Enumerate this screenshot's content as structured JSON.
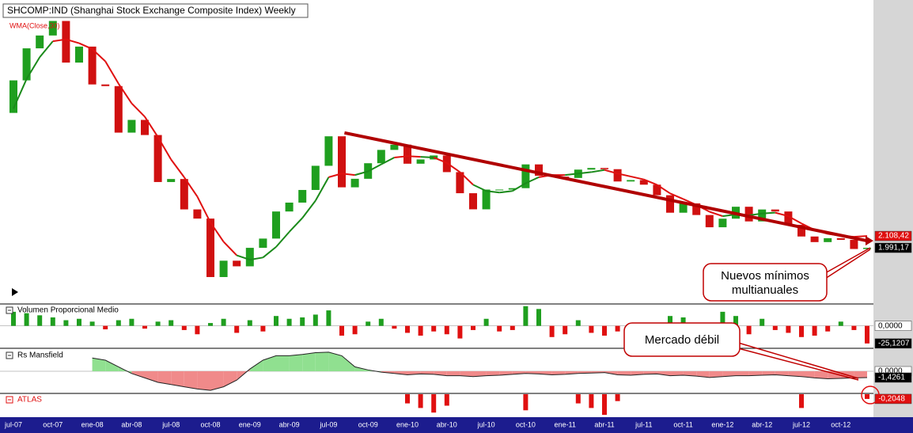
{
  "chart_data": [
    {
      "type": "candlestick",
      "title": "SHCOMP:IND (Shanghai Stock Exchange Composite Index) Weekly",
      "categories": [
        "jul-07",
        null,
        null,
        "oct-07",
        null,
        null,
        "ene-08",
        null,
        null,
        "abr-08",
        null,
        null,
        "jul-08",
        null,
        null,
        "oct-08",
        null,
        null,
        "ene-09",
        null,
        null,
        "abr-09",
        null,
        null,
        "jul-09",
        null,
        null,
        "oct-09",
        null,
        null,
        "ene-10",
        null,
        null,
        "abr-10",
        null,
        null,
        "jul-10",
        null,
        null,
        "oct-10",
        null,
        null,
        "ene-11",
        null,
        null,
        "abr-11",
        null,
        null,
        "jul-11",
        null,
        null,
        "oct-11",
        null,
        null,
        "ene-12",
        null,
        null,
        "abr-12",
        null,
        null,
        "jul-12",
        null,
        null,
        "oct-12",
        null,
        null
      ],
      "open": [
        3820,
        4470,
        5218,
        5552,
        5955,
        4871,
        5262,
        4383,
        4348,
        3473,
        3693,
        3433,
        2736,
        2776,
        2397,
        2293,
        1729,
        1871,
        1821,
        1991,
        2082,
        2373,
        2477,
        2633,
        2959,
        3412,
        2667,
        2779,
        2996,
        3195,
        3277,
        2989,
        3051,
        3110,
        2870,
        2592,
        2398,
        2638,
        2638,
        2656,
        2979,
        2820,
        2808,
        2790,
        2905,
        2928,
        2911,
        2743,
        2762,
        2701,
        2567,
        2359,
        2468,
        2333,
        2199,
        2292,
        2428,
        2262,
        2396,
        2373,
        2225,
        2103,
        2047,
        2086,
        2069,
        1980
      ],
      "close": [
        4470,
        5218,
        5552,
        5955,
        4871,
        5262,
        4383,
        4348,
        3473,
        3693,
        3433,
        2736,
        2776,
        2397,
        2293,
        1729,
        1871,
        1821,
        1991,
        2082,
        2373,
        2477,
        2633,
        2959,
        3412,
        2667,
        2779,
        2996,
        3195,
        3277,
        2989,
        3051,
        3110,
        2870,
        2592,
        2398,
        2638,
        2638,
        2656,
        2979,
        2820,
        2808,
        2790,
        2905,
        2928,
        2911,
        2743,
        2762,
        2701,
        2567,
        2359,
        2468,
        2333,
        2199,
        2292,
        2428,
        2262,
        2396,
        2373,
        2225,
        2103,
        2047,
        2086,
        2069,
        1980,
        1991.17
      ],
      "close_labels": [
        null,
        null,
        null,
        null,
        null,
        null,
        null,
        null,
        null,
        null,
        null,
        null,
        null,
        null,
        null,
        null,
        null,
        null,
        null,
        null,
        null,
        null,
        null,
        null,
        null,
        null,
        null,
        null,
        null,
        null,
        null,
        null,
        null,
        null,
        null,
        null,
        null,
        null,
        null,
        null,
        null,
        null,
        null,
        null,
        null,
        null,
        null,
        null,
        null,
        null,
        null,
        null,
        null,
        null,
        null,
        null,
        null,
        null,
        null,
        null,
        null,
        null,
        null,
        null,
        null,
        "1.991,17"
      ],
      "up_color": "#1f9f1f",
      "down_color": "#d01010",
      "series": [
        {
          "name": "WMA(Close,30)",
          "color": "#e01010",
          "up_color": "#1a8a1a",
          "values": [
            3900,
            4500,
            5000,
            5400,
            5450,
            5350,
            5200,
            4900,
            4400,
            4000,
            3750,
            3400,
            3050,
            2800,
            2550,
            2250,
            2050,
            1920,
            1880,
            1900,
            2000,
            2150,
            2300,
            2500,
            2800,
            2850,
            2830,
            2880,
            2980,
            3080,
            3100,
            3090,
            3080,
            3000,
            2870,
            2700,
            2620,
            2600,
            2620,
            2720,
            2800,
            2830,
            2830,
            2850,
            2870,
            2900,
            2850,
            2810,
            2770,
            2700,
            2590,
            2520,
            2450,
            2370,
            2320,
            2340,
            2330,
            2350,
            2360,
            2320,
            2240,
            2170,
            2130,
            2110,
            2100,
            2108.42
          ],
          "value_labels": [
            null,
            null,
            null,
            null,
            null,
            null,
            null,
            null,
            null,
            null,
            null,
            null,
            null,
            null,
            null,
            null,
            null,
            null,
            null,
            null,
            null,
            null,
            null,
            null,
            null,
            null,
            null,
            null,
            null,
            null,
            null,
            null,
            null,
            null,
            null,
            null,
            null,
            null,
            null,
            null,
            null,
            null,
            null,
            null,
            null,
            null,
            null,
            null,
            null,
            null,
            null,
            null,
            null,
            null,
            null,
            null,
            null,
            null,
            null,
            null,
            null,
            null,
            null,
            null,
            null,
            "2.108,42"
          ]
        }
      ],
      "trend_line": {
        "values": [
          3470,
          2060
        ],
        "color": "#b00000"
      },
      "ylim": [
        1524,
        6590
      ],
      "log_scale": true
    },
    {
      "type": "bar",
      "title": "Volumen Proporcional Medio",
      "up_color": "#1f9f1f",
      "down_color": "#e01010",
      "values": [
        20,
        18,
        15,
        12,
        8,
        10,
        6,
        -5,
        8,
        10,
        -4,
        6,
        8,
        -6,
        -12,
        4,
        10,
        -10,
        8,
        -8,
        14,
        10,
        12,
        16,
        22,
        -14,
        -12,
        6,
        10,
        -4,
        -10,
        -14,
        -8,
        -12,
        -18,
        -6,
        10,
        -8,
        -6,
        28,
        24,
        -16,
        -12,
        8,
        -10,
        -14,
        -8,
        -6,
        -6,
        -10,
        14,
        12,
        -8,
        -10,
        20,
        14,
        -12,
        10,
        -6,
        -10,
        -16,
        -14,
        -8,
        6,
        -6,
        -25.1207
      ],
      "value_labels": [
        null,
        null,
        null,
        null,
        null,
        null,
        null,
        null,
        null,
        null,
        null,
        null,
        null,
        null,
        null,
        null,
        null,
        null,
        null,
        null,
        null,
        null,
        null,
        null,
        null,
        null,
        null,
        null,
        null,
        null,
        null,
        null,
        null,
        null,
        null,
        null,
        null,
        null,
        null,
        null,
        null,
        null,
        null,
        null,
        null,
        null,
        null,
        null,
        null,
        null,
        null,
        null,
        null,
        null,
        null,
        null,
        null,
        null,
        null,
        null,
        null,
        null,
        null,
        null,
        null,
        "-25,1207"
      ],
      "ylim": [
        -32,
        30
      ],
      "yticks": [
        {
          "value": 0,
          "label": "0,0000"
        }
      ]
    },
    {
      "type": "area",
      "title": "Rs Mansfield",
      "up_color": "#90e090",
      "down_color": "#f08a8a",
      "values": [
        null,
        null,
        null,
        null,
        null,
        null,
        3,
        2.5,
        1,
        -0.5,
        -1.5,
        -2.5,
        -3,
        -3.5,
        -4,
        -4.3,
        -3.5,
        -2,
        0.5,
        2.5,
        3.5,
        3.5,
        3.8,
        4.2,
        4.3,
        3.5,
        1,
        0.3,
        -0.2,
        -0.5,
        -0.8,
        -0.6,
        -0.7,
        -1,
        -1,
        -1.2,
        -1,
        -0.9,
        -0.7,
        -0.5,
        -0.6,
        -0.8,
        -0.7,
        -0.5,
        -0.4,
        -0.3,
        -0.8,
        -0.9,
        -0.7,
        -0.6,
        -1,
        -0.9,
        -1.1,
        -1.4,
        -1.2,
        -1,
        -1,
        -0.9,
        -0.8,
        -1,
        -1.2,
        -1.5,
        -1.7,
        -1.6,
        -1.5,
        -1.4261
      ],
      "value_labels": [
        null,
        null,
        null,
        null,
        null,
        null,
        null,
        null,
        null,
        null,
        null,
        null,
        null,
        null,
        null,
        null,
        null,
        null,
        null,
        null,
        null,
        null,
        null,
        null,
        null,
        null,
        null,
        null,
        null,
        null,
        null,
        null,
        null,
        null,
        null,
        null,
        null,
        null,
        null,
        null,
        null,
        null,
        null,
        null,
        null,
        null,
        null,
        null,
        null,
        null,
        null,
        null,
        null,
        null,
        null,
        null,
        null,
        null,
        null,
        null,
        null,
        null,
        null,
        null,
        null,
        "-1,4261"
      ],
      "ylim": [
        -5,
        5
      ],
      "yticks": [
        {
          "value": 0,
          "label": "0,0000"
        }
      ]
    },
    {
      "type": "bar",
      "title": "ATLAS",
      "up_color": "#e01010",
      "down_color": "#e01010",
      "values": [
        0,
        0,
        0,
        0,
        0,
        0,
        0,
        0,
        0,
        0,
        0,
        0,
        0,
        0,
        0,
        0,
        0,
        0,
        0,
        0,
        0,
        0,
        0,
        0,
        0,
        0,
        0,
        0,
        0,
        0,
        -0.4,
        -0.6,
        -0.8,
        -0.5,
        0,
        0,
        0,
        0,
        0,
        -0.7,
        0,
        0,
        0,
        -0.4,
        -0.6,
        -0.9,
        -0.3,
        0,
        0,
        0,
        0,
        0,
        0,
        0,
        0,
        0,
        0,
        0,
        0,
        0,
        -0.6,
        0,
        0,
        0,
        0,
        -0.2048
      ],
      "value_labels": [
        null,
        null,
        null,
        null,
        null,
        null,
        null,
        null,
        null,
        null,
        null,
        null,
        null,
        null,
        null,
        null,
        null,
        null,
        null,
        null,
        null,
        null,
        null,
        null,
        null,
        null,
        null,
        null,
        null,
        null,
        null,
        null,
        null,
        null,
        null,
        null,
        null,
        null,
        null,
        null,
        null,
        null,
        null,
        null,
        null,
        null,
        null,
        null,
        null,
        null,
        null,
        null,
        null,
        null,
        null,
        null,
        null,
        null,
        null,
        null,
        null,
        null,
        null,
        null,
        null,
        "-0,2048"
      ],
      "ylim": [
        -1,
        0
      ]
    }
  ],
  "annotations": [
    {
      "lines": [
        "Nuevos mínimos",
        "multianuales"
      ]
    },
    {
      "lines": [
        "Mercado débil"
      ]
    }
  ]
}
